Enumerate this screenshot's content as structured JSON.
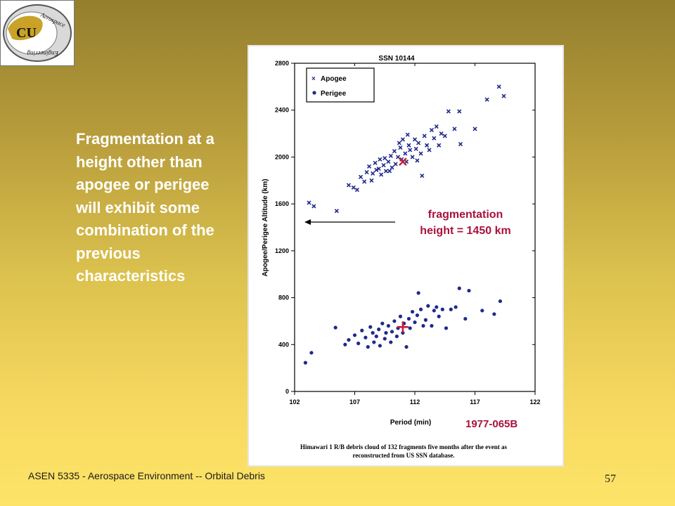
{
  "slide": {
    "body_text": "Fragmentation at a height other than apogee or perigee will exhibit some combination of the previous characteristics",
    "footer": "ASEN 5335 - Aerospace Environment -- Orbital Debris",
    "page_number": "57",
    "fragmentation_label_line1": "fragmentation",
    "fragmentation_label_line2": "height = 1450 km",
    "designator": "1977-065B",
    "logo_text": "Aerospace Engineering",
    "logo_letters": "CU"
  },
  "chart_data": {
    "type": "scatter",
    "title": "SSN 10144",
    "xlabel": "Period (min)",
    "ylabel": "Apogee/Perigee Altitude (km)",
    "caption_line1": "Himawari 1 R/B debris cloud of 132 fragments five months after the event as",
    "caption_line2": "reconstructed from US SSN database.",
    "xlim": [
      102,
      122
    ],
    "ylim": [
      0,
      2800
    ],
    "xticks": [
      102,
      107,
      112,
      117,
      122
    ],
    "yticks": [
      0,
      400,
      800,
      1200,
      1600,
      2000,
      2400,
      2800
    ],
    "legend_position": "top-left",
    "grid": false,
    "colors": {
      "points": "#1f2a8c",
      "marker": "#c81e3c"
    },
    "series": [
      {
        "name": "Apogee",
        "marker": "x",
        "points": [
          [
            103.2,
            1610
          ],
          [
            103.6,
            1580
          ],
          [
            105.5,
            1540
          ],
          [
            106.5,
            1760
          ],
          [
            106.9,
            1740
          ],
          [
            107.2,
            1720
          ],
          [
            107.5,
            1830
          ],
          [
            107.8,
            1790
          ],
          [
            108.0,
            1870
          ],
          [
            108.2,
            1920
          ],
          [
            108.4,
            1800
          ],
          [
            108.5,
            1860
          ],
          [
            108.7,
            1950
          ],
          [
            108.8,
            1890
          ],
          [
            109.0,
            1900
          ],
          [
            109.1,
            1980
          ],
          [
            109.2,
            1850
          ],
          [
            109.4,
            1930
          ],
          [
            109.5,
            1990
          ],
          [
            109.6,
            1880
          ],
          [
            109.8,
            1960
          ],
          [
            110.0,
            2010
          ],
          [
            110.1,
            1910
          ],
          [
            110.3,
            2050
          ],
          [
            110.4,
            1940
          ],
          [
            110.6,
            2000
          ],
          [
            110.8,
            2080
          ],
          [
            110.9,
            1980
          ],
          [
            111.0,
            2150
          ],
          [
            111.2,
            2030
          ],
          [
            111.3,
            1960
          ],
          [
            111.5,
            2100
          ],
          [
            111.6,
            2060
          ],
          [
            111.8,
            2000
          ],
          [
            112.0,
            2150
          ],
          [
            112.1,
            2070
          ],
          [
            112.3,
            2120
          ],
          [
            112.5,
            2030
          ],
          [
            112.6,
            1840
          ],
          [
            112.8,
            2180
          ],
          [
            113.0,
            2100
          ],
          [
            113.2,
            2060
          ],
          [
            113.4,
            2230
          ],
          [
            113.6,
            2160
          ],
          [
            113.8,
            2260
          ],
          [
            114.0,
            2100
          ],
          [
            114.2,
            2200
          ],
          [
            114.5,
            2180
          ],
          [
            114.8,
            2390
          ],
          [
            115.3,
            2240
          ],
          [
            115.7,
            2390
          ],
          [
            115.8,
            2110
          ],
          [
            117.0,
            2240
          ],
          [
            118.0,
            2490
          ],
          [
            119.0,
            2600
          ],
          [
            119.4,
            2520
          ],
          [
            109.9,
            1880
          ],
          [
            110.7,
            2120
          ],
          [
            111.4,
            2190
          ],
          [
            112.2,
            1970
          ]
        ]
      },
      {
        "name": "Perigee",
        "marker": "dot",
        "points": [
          [
            102.9,
            245
          ],
          [
            103.4,
            330
          ],
          [
            105.4,
            545
          ],
          [
            106.2,
            400
          ],
          [
            106.5,
            440
          ],
          [
            107.0,
            480
          ],
          [
            107.3,
            410
          ],
          [
            107.6,
            520
          ],
          [
            107.9,
            460
          ],
          [
            108.1,
            380
          ],
          [
            108.3,
            550
          ],
          [
            108.5,
            500
          ],
          [
            108.6,
            420
          ],
          [
            108.8,
            470
          ],
          [
            109.0,
            530
          ],
          [
            109.1,
            390
          ],
          [
            109.3,
            580
          ],
          [
            109.5,
            450
          ],
          [
            109.6,
            500
          ],
          [
            109.8,
            560
          ],
          [
            110.0,
            420
          ],
          [
            110.1,
            510
          ],
          [
            110.3,
            600
          ],
          [
            110.5,
            470
          ],
          [
            110.6,
            540
          ],
          [
            110.8,
            640
          ],
          [
            111.0,
            500
          ],
          [
            111.1,
            580
          ],
          [
            111.3,
            380
          ],
          [
            111.5,
            620
          ],
          [
            111.6,
            540
          ],
          [
            111.8,
            680
          ],
          [
            112.0,
            590
          ],
          [
            112.2,
            650
          ],
          [
            112.3,
            840
          ],
          [
            112.5,
            700
          ],
          [
            112.7,
            560
          ],
          [
            112.9,
            610
          ],
          [
            113.1,
            730
          ],
          [
            113.4,
            560
          ],
          [
            113.6,
            690
          ],
          [
            113.8,
            720
          ],
          [
            114.0,
            640
          ],
          [
            114.3,
            700
          ],
          [
            114.6,
            540
          ],
          [
            115.0,
            700
          ],
          [
            115.4,
            720
          ],
          [
            115.7,
            880
          ],
          [
            116.2,
            620
          ],
          [
            116.5,
            860
          ],
          [
            117.6,
            690
          ],
          [
            118.6,
            660
          ],
          [
            119.1,
            770
          ]
        ]
      }
    ],
    "fragmentation_point": {
      "x": 111.0,
      "apogee": 1960,
      "perigee": 550
    }
  }
}
